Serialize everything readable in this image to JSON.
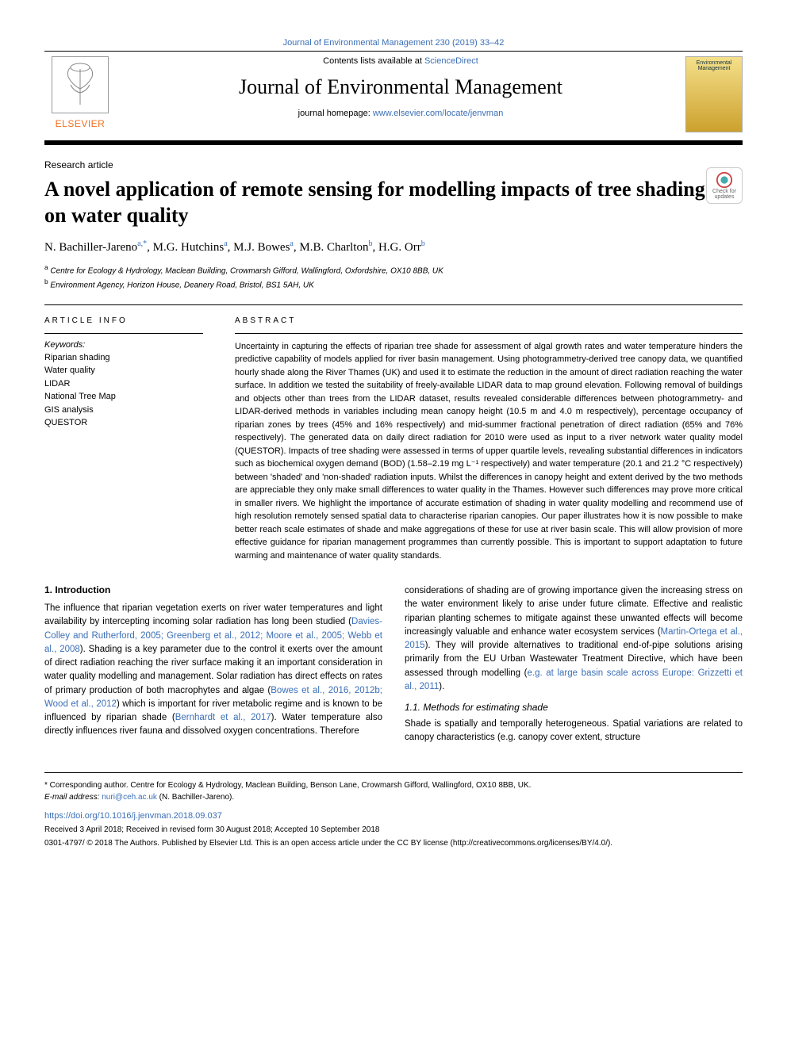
{
  "colors": {
    "link": "#3b6fb6",
    "publisher": "#f37021",
    "rule": "#000000",
    "body_text": "#000000"
  },
  "typography": {
    "body_font": "Arial",
    "title_font": "Georgia",
    "title_size_pt": 26,
    "body_size_pt": 11.5,
    "abstract_size_pt": 11
  },
  "header": {
    "top_journal_link": "Journal of Environmental Management 230 (2019) 33–42",
    "contents_prefix": "Contents lists available at ",
    "contents_link": "ScienceDirect",
    "journal_name": "Journal of Environmental Management",
    "homepage_prefix": "journal homepage: ",
    "homepage_link": "www.elsevier.com/locate/jenvman",
    "publisher_name": "ELSEVIER",
    "cover_label": "Environmental Management"
  },
  "update_badge": {
    "line1": "Check for",
    "line2": "updates"
  },
  "article": {
    "type": "Research article",
    "title": "A novel application of remote sensing for modelling impacts of tree shading on water quality",
    "authors_html": "N. Bachiller-Jareno<sup><a>a</a>,*</sup>, M.G. Hutchins<sup><a>a</a></sup>, M.J. Bowes<sup><a>a</a></sup>, M.B. Charlton<sup><a>b</a></sup>, H.G. Orr<sup><a>b</a></sup>",
    "affiliations": [
      {
        "sup": "a",
        "text": "Centre for Ecology & Hydrology, Maclean Building, Crowmarsh Gifford, Wallingford, Oxfordshire, OX10 8BB, UK"
      },
      {
        "sup": "b",
        "text": "Environment Agency, Horizon House, Deanery Road, Bristol, BS1 5AH, UK"
      }
    ]
  },
  "info": {
    "label": "ARTICLE INFO",
    "keywords_label": "Keywords:",
    "keywords": [
      "Riparian shading",
      "Water quality",
      "LIDAR",
      "National Tree Map",
      "GIS analysis",
      "QUESTOR"
    ]
  },
  "abstract": {
    "label": "ABSTRACT",
    "text": "Uncertainty in capturing the effects of riparian tree shade for assessment of algal growth rates and water temperature hinders the predictive capability of models applied for river basin management. Using photogrammetry-derived tree canopy data, we quantified hourly shade along the River Thames (UK) and used it to estimate the reduction in the amount of direct radiation reaching the water surface. In addition we tested the suitability of freely-available LIDAR data to map ground elevation. Following removal of buildings and objects other than trees from the LIDAR dataset, results revealed considerable differences between photogrammetry- and LIDAR-derived methods in variables including mean canopy height (10.5 m and 4.0 m respectively), percentage occupancy of riparian zones by trees (45% and 16% respectively) and mid-summer fractional penetration of direct radiation (65% and 76% respectively). The generated data on daily direct radiation for 2010 were used as input to a river network water quality model (QUESTOR). Impacts of tree shading were assessed in terms of upper quartile levels, revealing substantial differences in indicators such as biochemical oxygen demand (BOD) (1.58–2.19 mg L⁻¹ respectively) and water temperature (20.1 and 21.2 °C respectively) between 'shaded' and 'non-shaded' radiation inputs. Whilst the differences in canopy height and extent derived by the two methods are appreciable they only make small differences to water quality in the Thames. However such differences may prove more critical in smaller rivers. We highlight the importance of accurate estimation of shading in water quality modelling and recommend use of high resolution remotely sensed spatial data to characterise riparian canopies. Our paper illustrates how it is now possible to make better reach scale estimates of shade and make aggregations of these for use at river basin scale. This will allow provision of more effective guidance for riparian management programmes than currently possible. This is important to support adaptation to future warming and maintenance of water quality standards."
  },
  "sections": {
    "s1_head": "1. Introduction",
    "s1_p1": "The influence that riparian vegetation exerts on river water temperatures and light availability by intercepting incoming solar radiation has long been studied (Davies-Colley and Rutherford, 2005; Greenberg et al., 2012; Moore et al., 2005; Webb et al., 2008). Shading is a key parameter due to the control it exerts over the amount of direct radiation reaching the river surface making it an important consideration in water quality modelling and management. Solar radiation has direct effects on rates of primary production of both macrophytes and algae (Bowes et al., 2016, 2012b; Wood et al., 2012) which is important for river metabolic regime and is known to be influenced by riparian shade (Bernhardt et al., 2017). Water temperature also directly influences river fauna and dissolved oxygen concentrations. Therefore",
    "s1_p2": "considerations of shading are of growing importance given the increasing stress on the water environment likely to arise under future climate. Effective and realistic riparian planting schemes to mitigate against these unwanted effects will become increasingly valuable and enhance water ecosystem services (Martin-Ortega et al., 2015). They will provide alternatives to traditional end-of-pipe solutions arising primarily from the EU Urban Wastewater Treatment Directive, which have been assessed through modelling (e.g. at large basin scale across Europe: Grizzetti et al., 2011).",
    "s11_head": "1.1. Methods for estimating shade",
    "s11_p1": "Shade is spatially and temporally heterogeneous. Spatial variations are related to canopy characteristics (e.g. canopy cover extent, structure"
  },
  "footer": {
    "corr": "* Corresponding author. Centre for Ecology & Hydrology, Maclean Building, Benson Lane, Crowmarsh Gifford, Wallingford, OX10 8BB, UK.",
    "email_label": "E-mail address: ",
    "email": "nuri@ceh.ac.uk",
    "email_suffix": " (N. Bachiller-Jareno).",
    "doi": "https://doi.org/10.1016/j.jenvman.2018.09.037",
    "received": "Received 3 April 2018; Received in revised form 30 August 2018; Accepted 10 September 2018",
    "copyright": "0301-4797/ © 2018 The Authors. Published by Elsevier Ltd. This is an open access article under the CC BY license (http://creativecommons.org/licenses/BY/4.0/)."
  }
}
